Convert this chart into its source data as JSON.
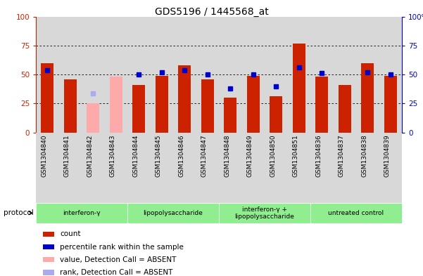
{
  "title": "GDS5196 / 1445568_at",
  "samples": [
    "GSM1304840",
    "GSM1304841",
    "GSM1304842",
    "GSM1304843",
    "GSM1304844",
    "GSM1304845",
    "GSM1304846",
    "GSM1304847",
    "GSM1304848",
    "GSM1304849",
    "GSM1304850",
    "GSM1304851",
    "GSM1304836",
    "GSM1304837",
    "GSM1304838",
    "GSM1304839"
  ],
  "count_values": [
    60,
    46,
    25,
    48,
    41,
    49,
    58,
    46,
    30,
    49,
    31,
    77,
    48,
    41,
    60,
    49
  ],
  "rank_values": [
    54,
    null,
    34,
    null,
    50,
    52,
    54,
    50,
    38,
    50,
    40,
    56,
    51,
    null,
    52,
    50
  ],
  "absent_count": [
    false,
    false,
    true,
    true,
    false,
    false,
    false,
    false,
    false,
    false,
    false,
    false,
    false,
    false,
    false,
    false
  ],
  "absent_rank": [
    false,
    false,
    true,
    false,
    false,
    false,
    false,
    false,
    false,
    false,
    false,
    false,
    false,
    false,
    false,
    false
  ],
  "protocols": [
    {
      "label": "interferon-γ",
      "start": 0,
      "end": 3,
      "color": "#90ee90"
    },
    {
      "label": "lipopolysaccharide",
      "start": 4,
      "end": 7,
      "color": "#90ee90"
    },
    {
      "label": "interferon-γ +\nlipopolysaccharide",
      "start": 8,
      "end": 11,
      "color": "#90ee90"
    },
    {
      "label": "untreated control",
      "start": 12,
      "end": 15,
      "color": "#90ee90"
    }
  ],
  "ylim": [
    0,
    100
  ],
  "grid_values": [
    25,
    50,
    75
  ],
  "count_color": "#cc2200",
  "absent_count_color": "#ffaaaa",
  "rank_color": "#0000cc",
  "absent_rank_color": "#aaaaee",
  "col_bg_color": "#d8d8d8",
  "plot_bg_color": "#ffffff",
  "protocol_label": "protocol",
  "legend_items": [
    {
      "color": "#cc2200",
      "label": "count"
    },
    {
      "color": "#0000cc",
      "label": "percentile rank within the sample"
    },
    {
      "color": "#ffaaaa",
      "label": "value, Detection Call = ABSENT"
    },
    {
      "color": "#aaaaee",
      "label": "rank, Detection Call = ABSENT"
    }
  ]
}
